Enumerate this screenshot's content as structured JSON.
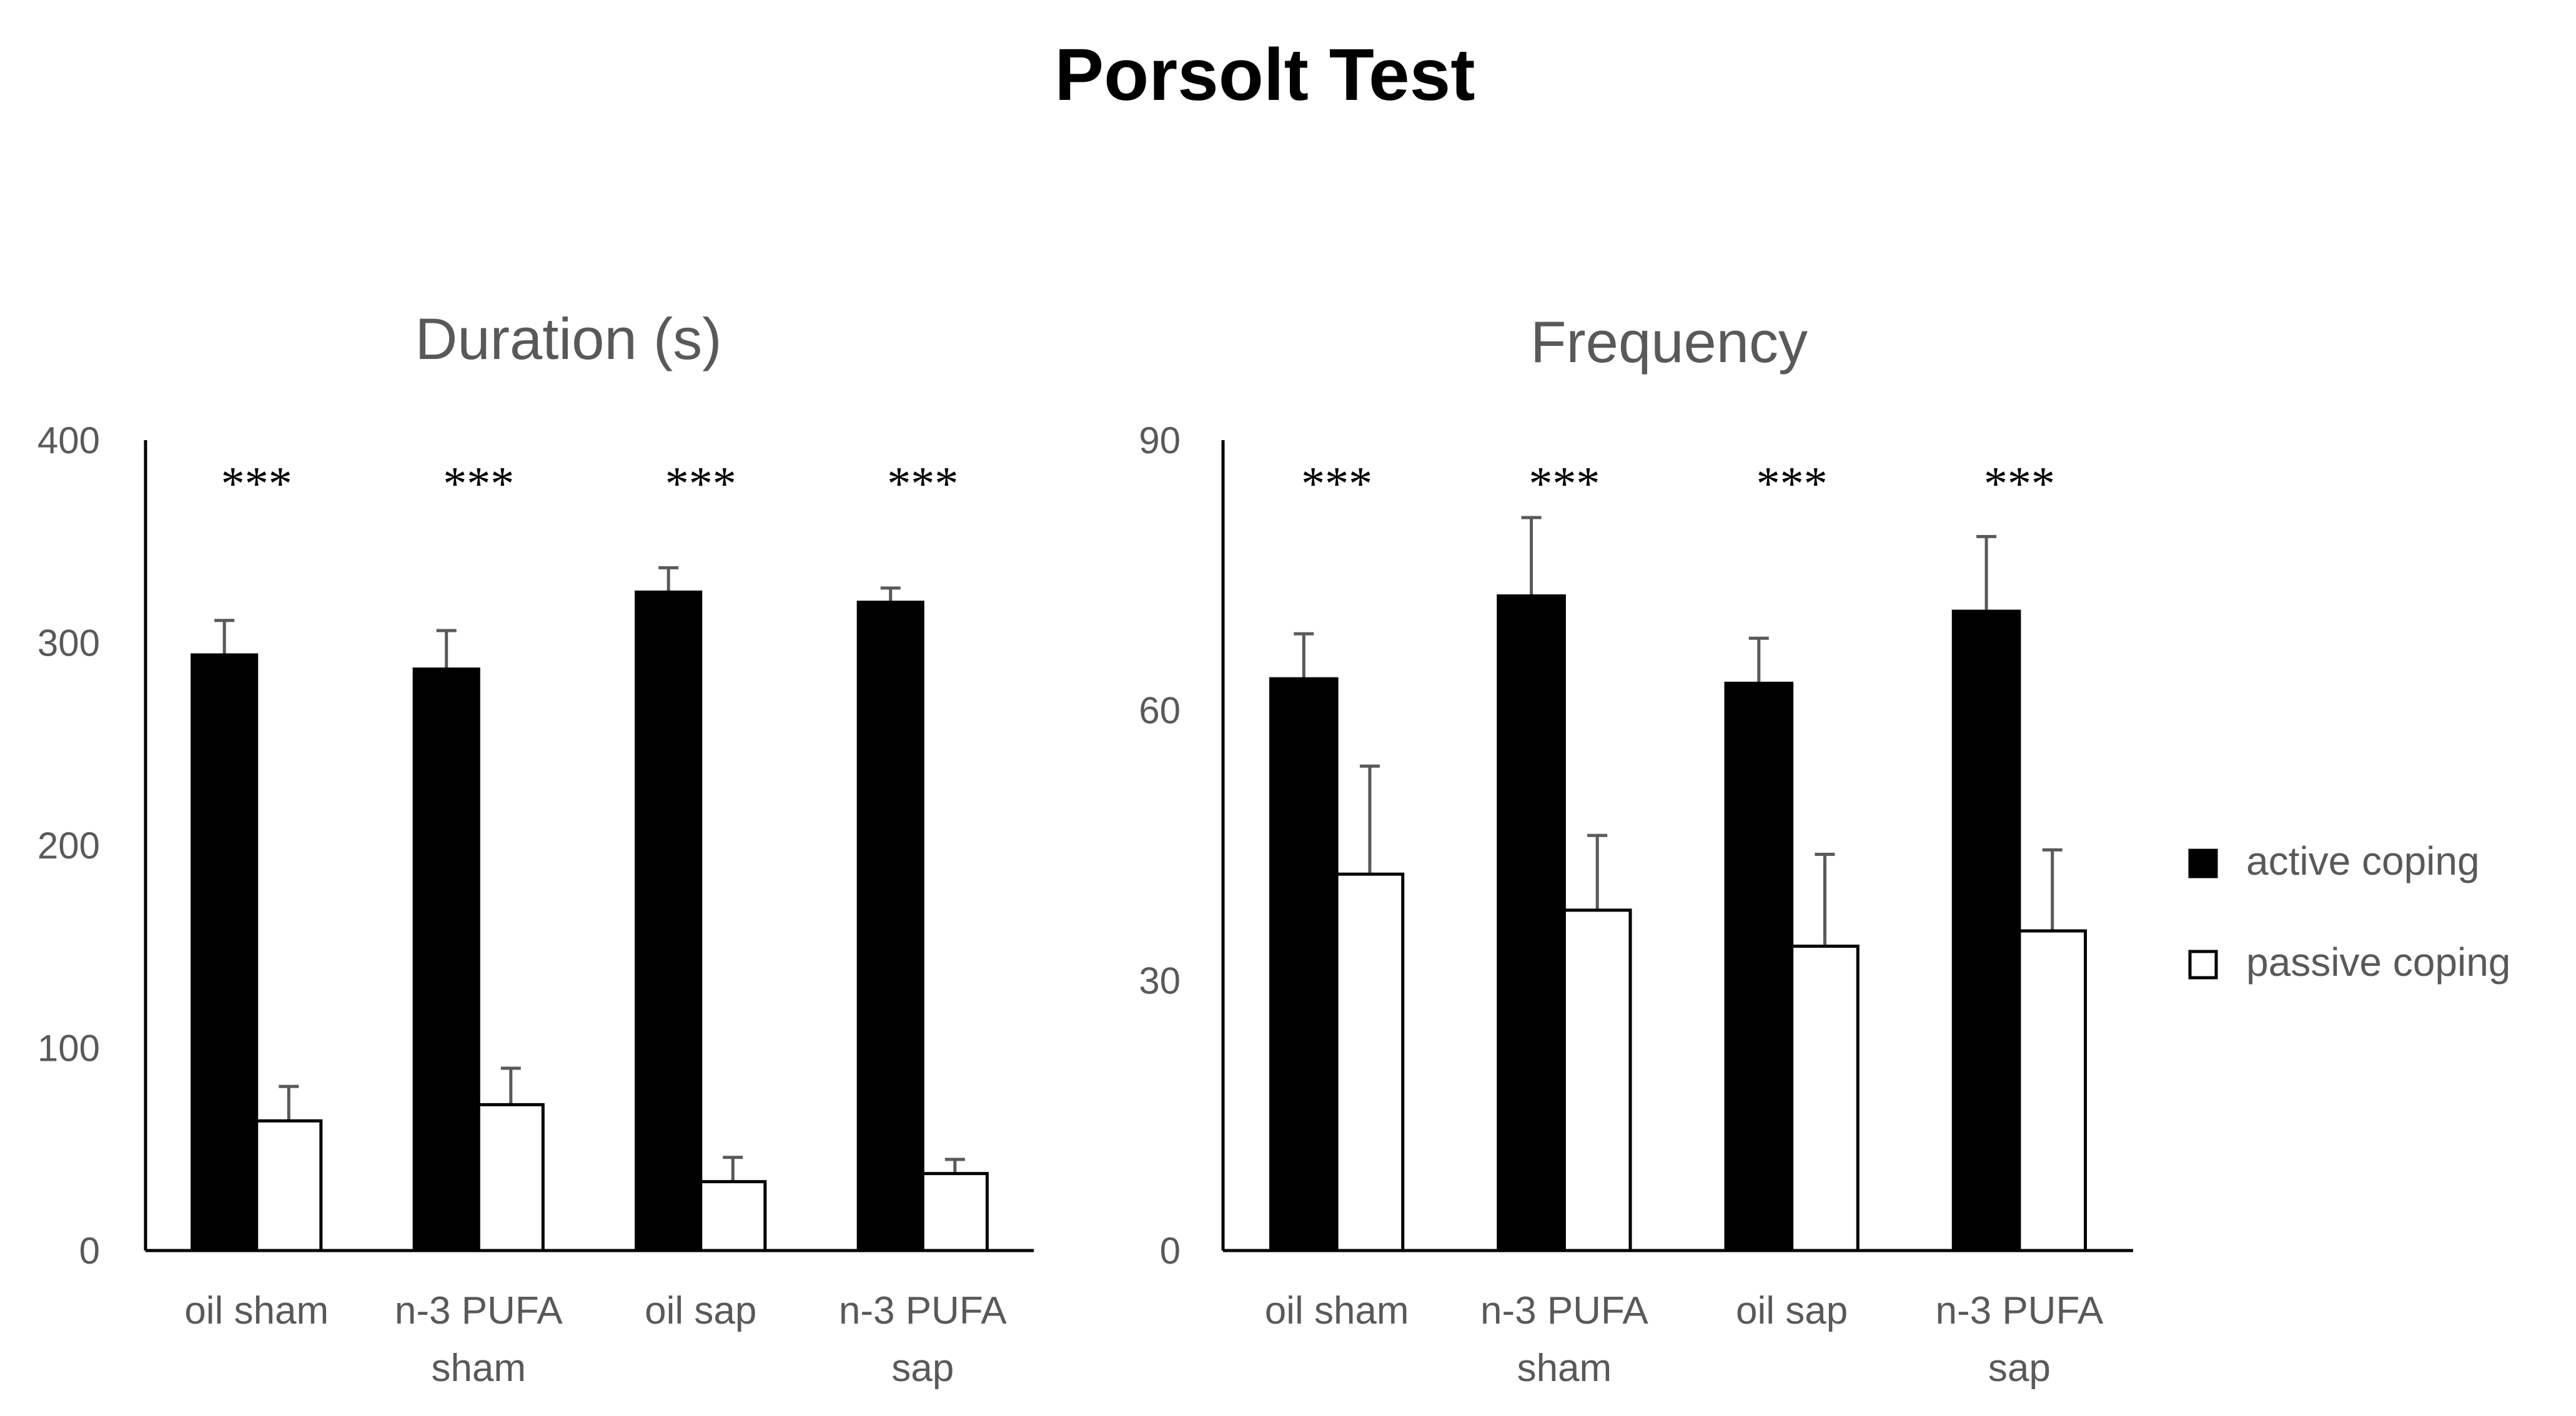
{
  "title": "Porsolt Test",
  "legend": [
    {
      "label": "active coping",
      "fill": "#000000"
    },
    {
      "label": "passive coping",
      "fill": "#ffffff"
    }
  ],
  "chart_data": [
    {
      "type": "bar",
      "title": "Duration (s)",
      "xlabel": "",
      "ylabel": "",
      "ylim": [
        0,
        400
      ],
      "yticks": [
        0,
        100,
        200,
        300,
        400
      ],
      "categories": [
        [
          "oil sham"
        ],
        [
          "n-3 PUFA",
          "sham"
        ],
        [
          "oil sap"
        ],
        [
          "n-3 PUFA",
          "sap"
        ]
      ],
      "significance": [
        "***",
        "***",
        "***",
        "***"
      ],
      "series": [
        {
          "name": "active coping",
          "values": [
            294,
            287,
            325,
            320
          ],
          "errors": [
            17,
            19,
            12,
            7
          ]
        },
        {
          "name": "passive coping",
          "values": [
            64,
            72,
            34,
            38
          ],
          "errors": [
            17,
            18,
            12,
            7
          ]
        }
      ]
    },
    {
      "type": "bar",
      "title": "Frequency",
      "xlabel": "",
      "ylabel": "",
      "ylim": [
        0,
        90
      ],
      "yticks": [
        0,
        30,
        60,
        90
      ],
      "categories": [
        [
          "oil sham"
        ],
        [
          "n-3 PUFA",
          "sham"
        ],
        [
          "oil sap"
        ],
        [
          "n-3 PUFA",
          "sap"
        ]
      ],
      "significance": [
        "***",
        "***",
        "***",
        "***"
      ],
      "series": [
        {
          "name": "active coping",
          "values": [
            63.5,
            72.7,
            63,
            71
          ],
          "errors": [
            5,
            8.7,
            5,
            8.3
          ]
        },
        {
          "name": "passive coping",
          "values": [
            41.8,
            37.8,
            33.8,
            35.5
          ],
          "errors": [
            12,
            8.3,
            10.2,
            9
          ]
        }
      ]
    }
  ]
}
